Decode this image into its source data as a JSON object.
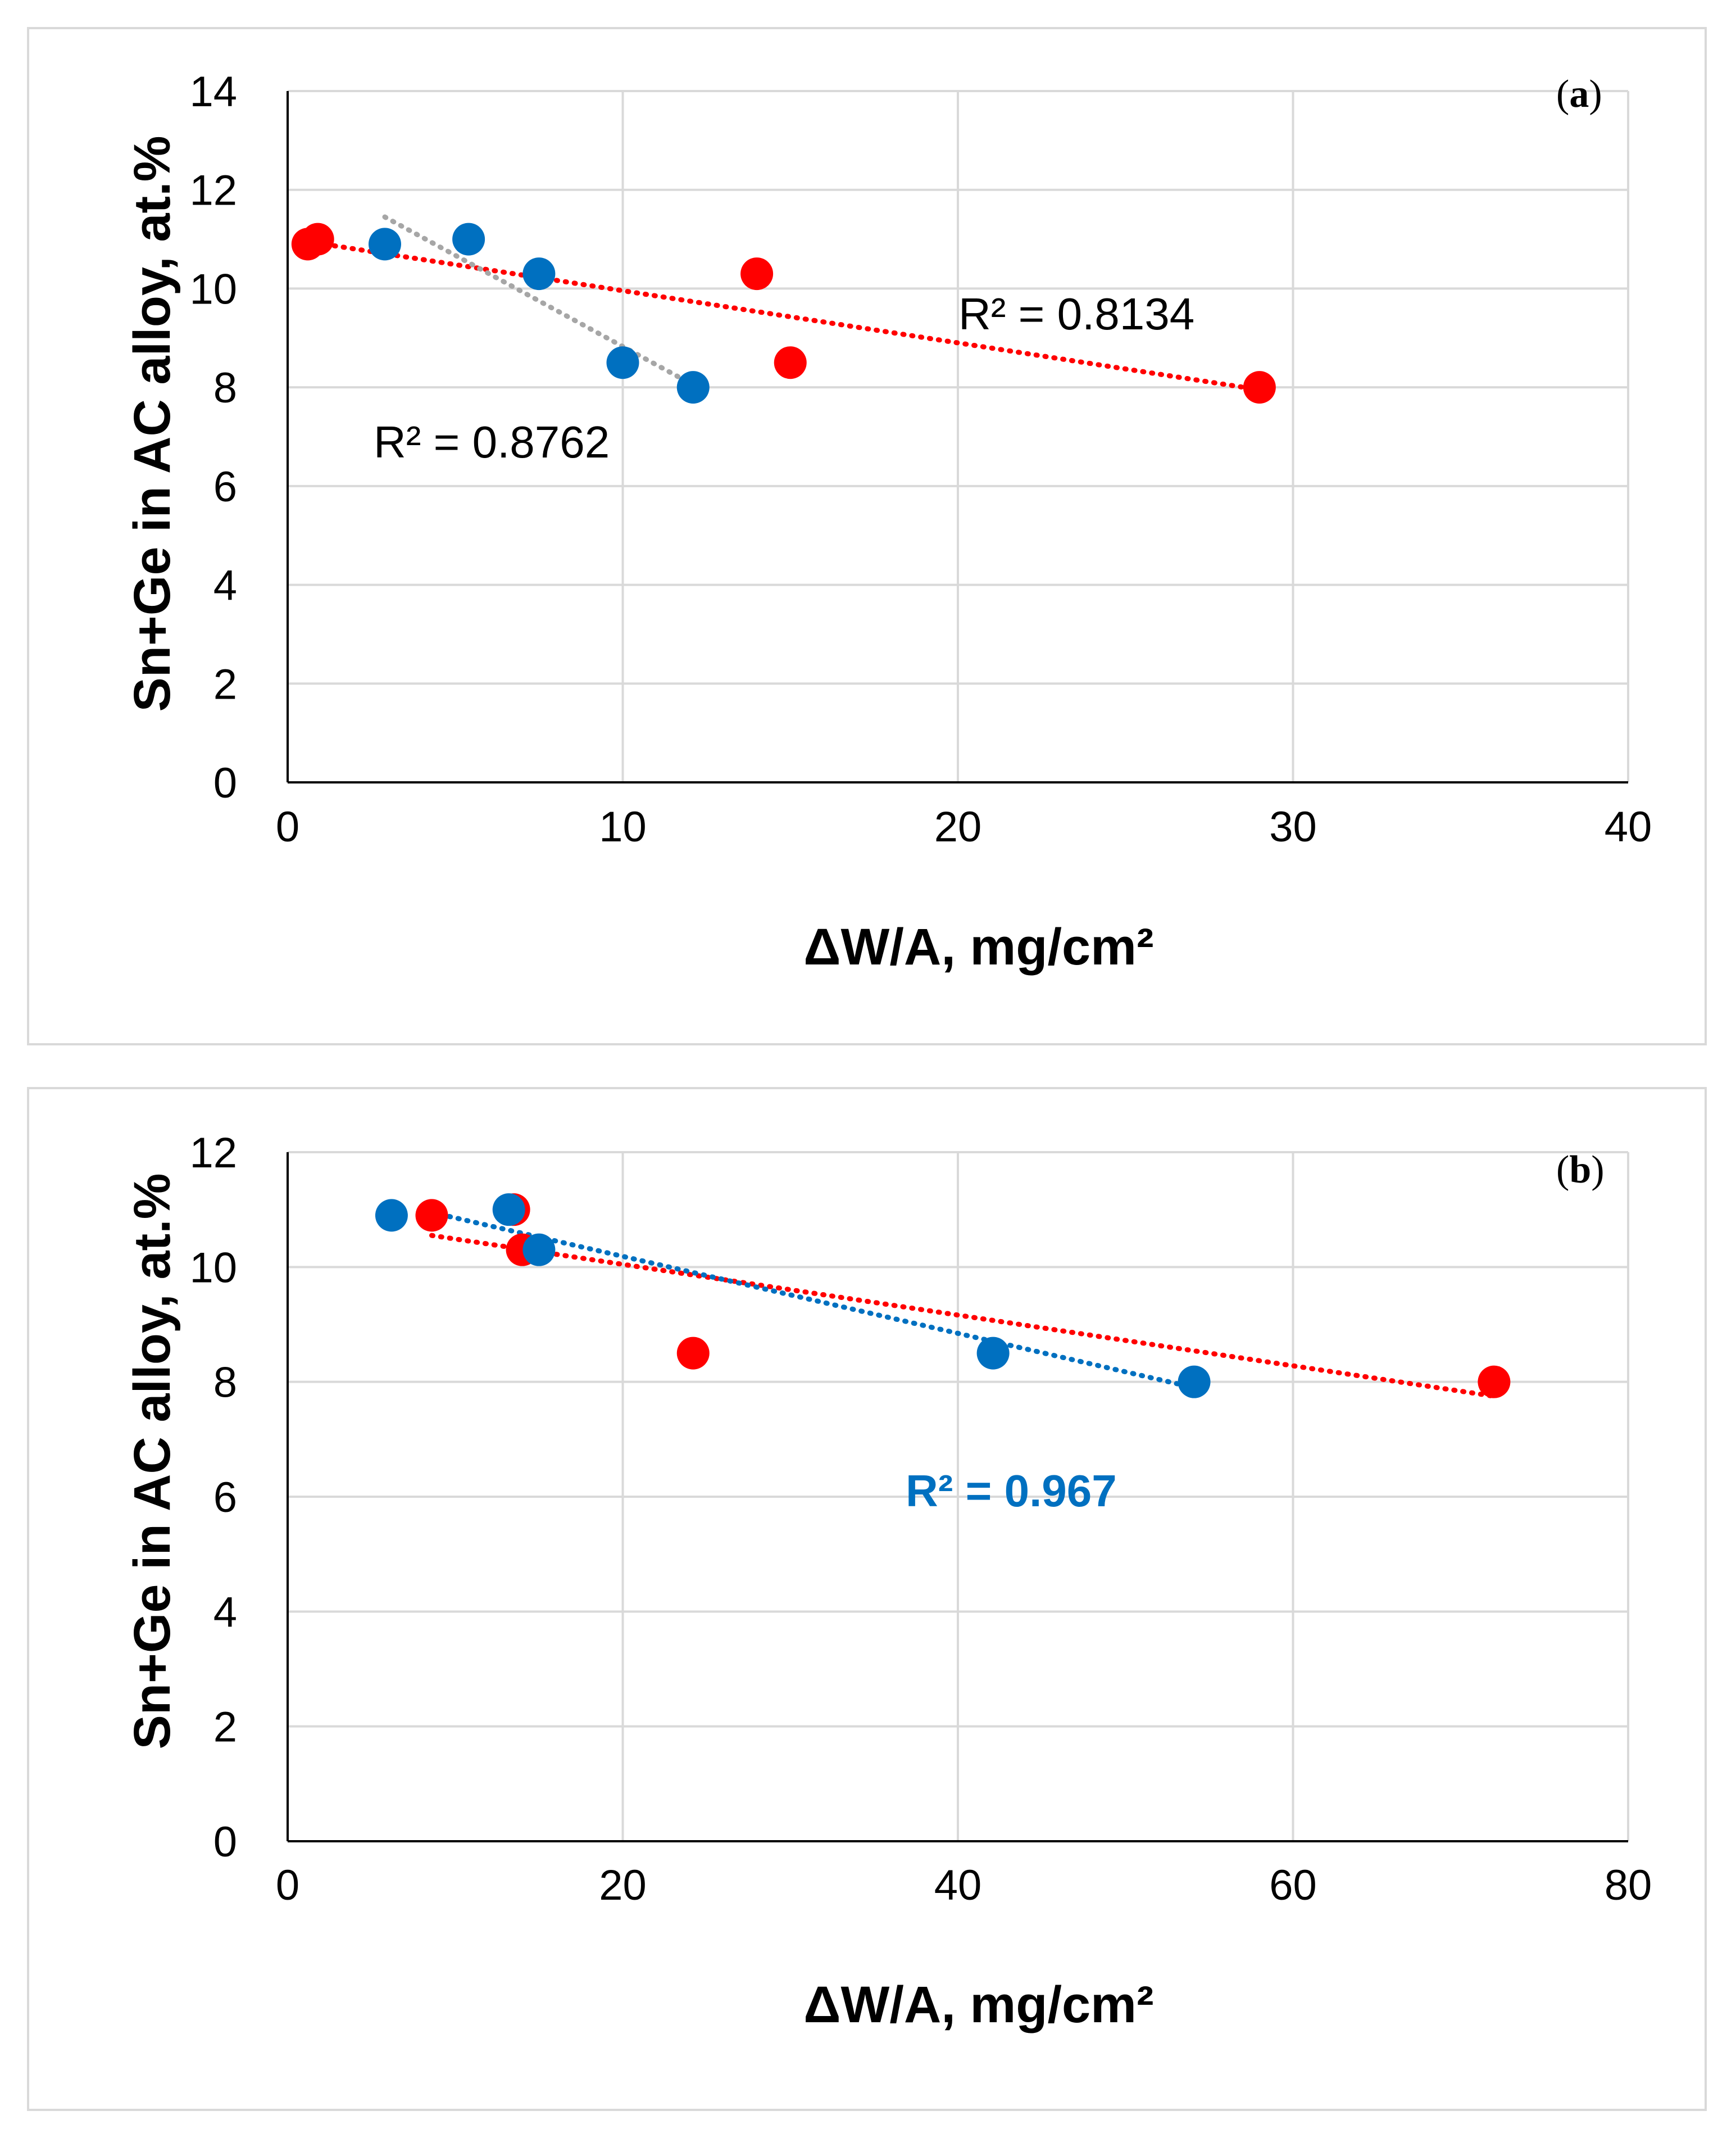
{
  "colors": {
    "red": "#ff0000",
    "blue": "#0070c0",
    "gray_trend": "#a6a6a6",
    "grid": "#d9d9d9",
    "axis": "#000000",
    "r2_label_b": "#0070c0"
  },
  "chart_data": [
    {
      "type": "scatter",
      "panel_label": "(a)",
      "panel_letter": "a",
      "xlabel": "ΔW/A, mg/cm²",
      "ylabel": "Sn+Ge in AC alloy, at.%",
      "xlim": [
        0,
        40
      ],
      "ylim": [
        0,
        14
      ],
      "xticks": [
        0,
        10,
        20,
        30,
        40
      ],
      "yticks": [
        0,
        2,
        4,
        6,
        8,
        10,
        12,
        14
      ],
      "grid": true,
      "series": [
        {
          "name": "red",
          "color": "#ff0000",
          "x": [
            0.6,
            0.9,
            14.0,
            15.0,
            29.0
          ],
          "y": [
            10.9,
            11.0,
            10.3,
            8.5,
            8.0
          ],
          "trendline": {
            "x": [
              0.6,
              29.0
            ],
            "y": [
              10.95,
              7.95
            ],
            "color": "#ff0000"
          },
          "r2_label": "R² = 0.8134"
        },
        {
          "name": "blue",
          "color": "#0070c0",
          "x": [
            2.9,
            5.4,
            7.5,
            10.0,
            12.1
          ],
          "y": [
            10.9,
            11.0,
            10.3,
            8.5,
            8.0
          ],
          "trendline": {
            "x": [
              2.9,
              12.1
            ],
            "y": [
              11.45,
              8.05
            ],
            "color": "#a6a6a6"
          },
          "r2_label": "R² = 0.8762"
        }
      ]
    },
    {
      "type": "scatter",
      "panel_label": "(b)",
      "panel_letter": "b",
      "xlabel": "ΔW/A, mg/cm²",
      "ylabel": "Sn+Ge in AC alloy, at.%",
      "xlim": [
        0,
        80
      ],
      "ylim": [
        0,
        12
      ],
      "xticks": [
        0,
        20,
        40,
        60,
        80
      ],
      "yticks": [
        0,
        2,
        4,
        6,
        8,
        10,
        12
      ],
      "grid": true,
      "series": [
        {
          "name": "red",
          "color": "#ff0000",
          "x": [
            8.6,
            13.5,
            14.0,
            24.2,
            72.0
          ],
          "y": [
            10.9,
            11.0,
            10.3,
            8.5,
            8.0
          ],
          "trendline": {
            "x": [
              8.6,
              72.0
            ],
            "y": [
              10.55,
              7.75
            ],
            "color": "#ff0000"
          }
        },
        {
          "name": "blue",
          "color": "#0070c0",
          "x": [
            6.2,
            13.2,
            15.0,
            42.1,
            54.1
          ],
          "y": [
            10.9,
            11.0,
            10.3,
            8.5,
            8.0
          ],
          "trendline": {
            "x": [
              8.6,
              54.1
            ],
            "y": [
              10.95,
              7.9
            ],
            "color": "#0070c0"
          },
          "r2_label": "R² = 0.967"
        }
      ]
    }
  ]
}
